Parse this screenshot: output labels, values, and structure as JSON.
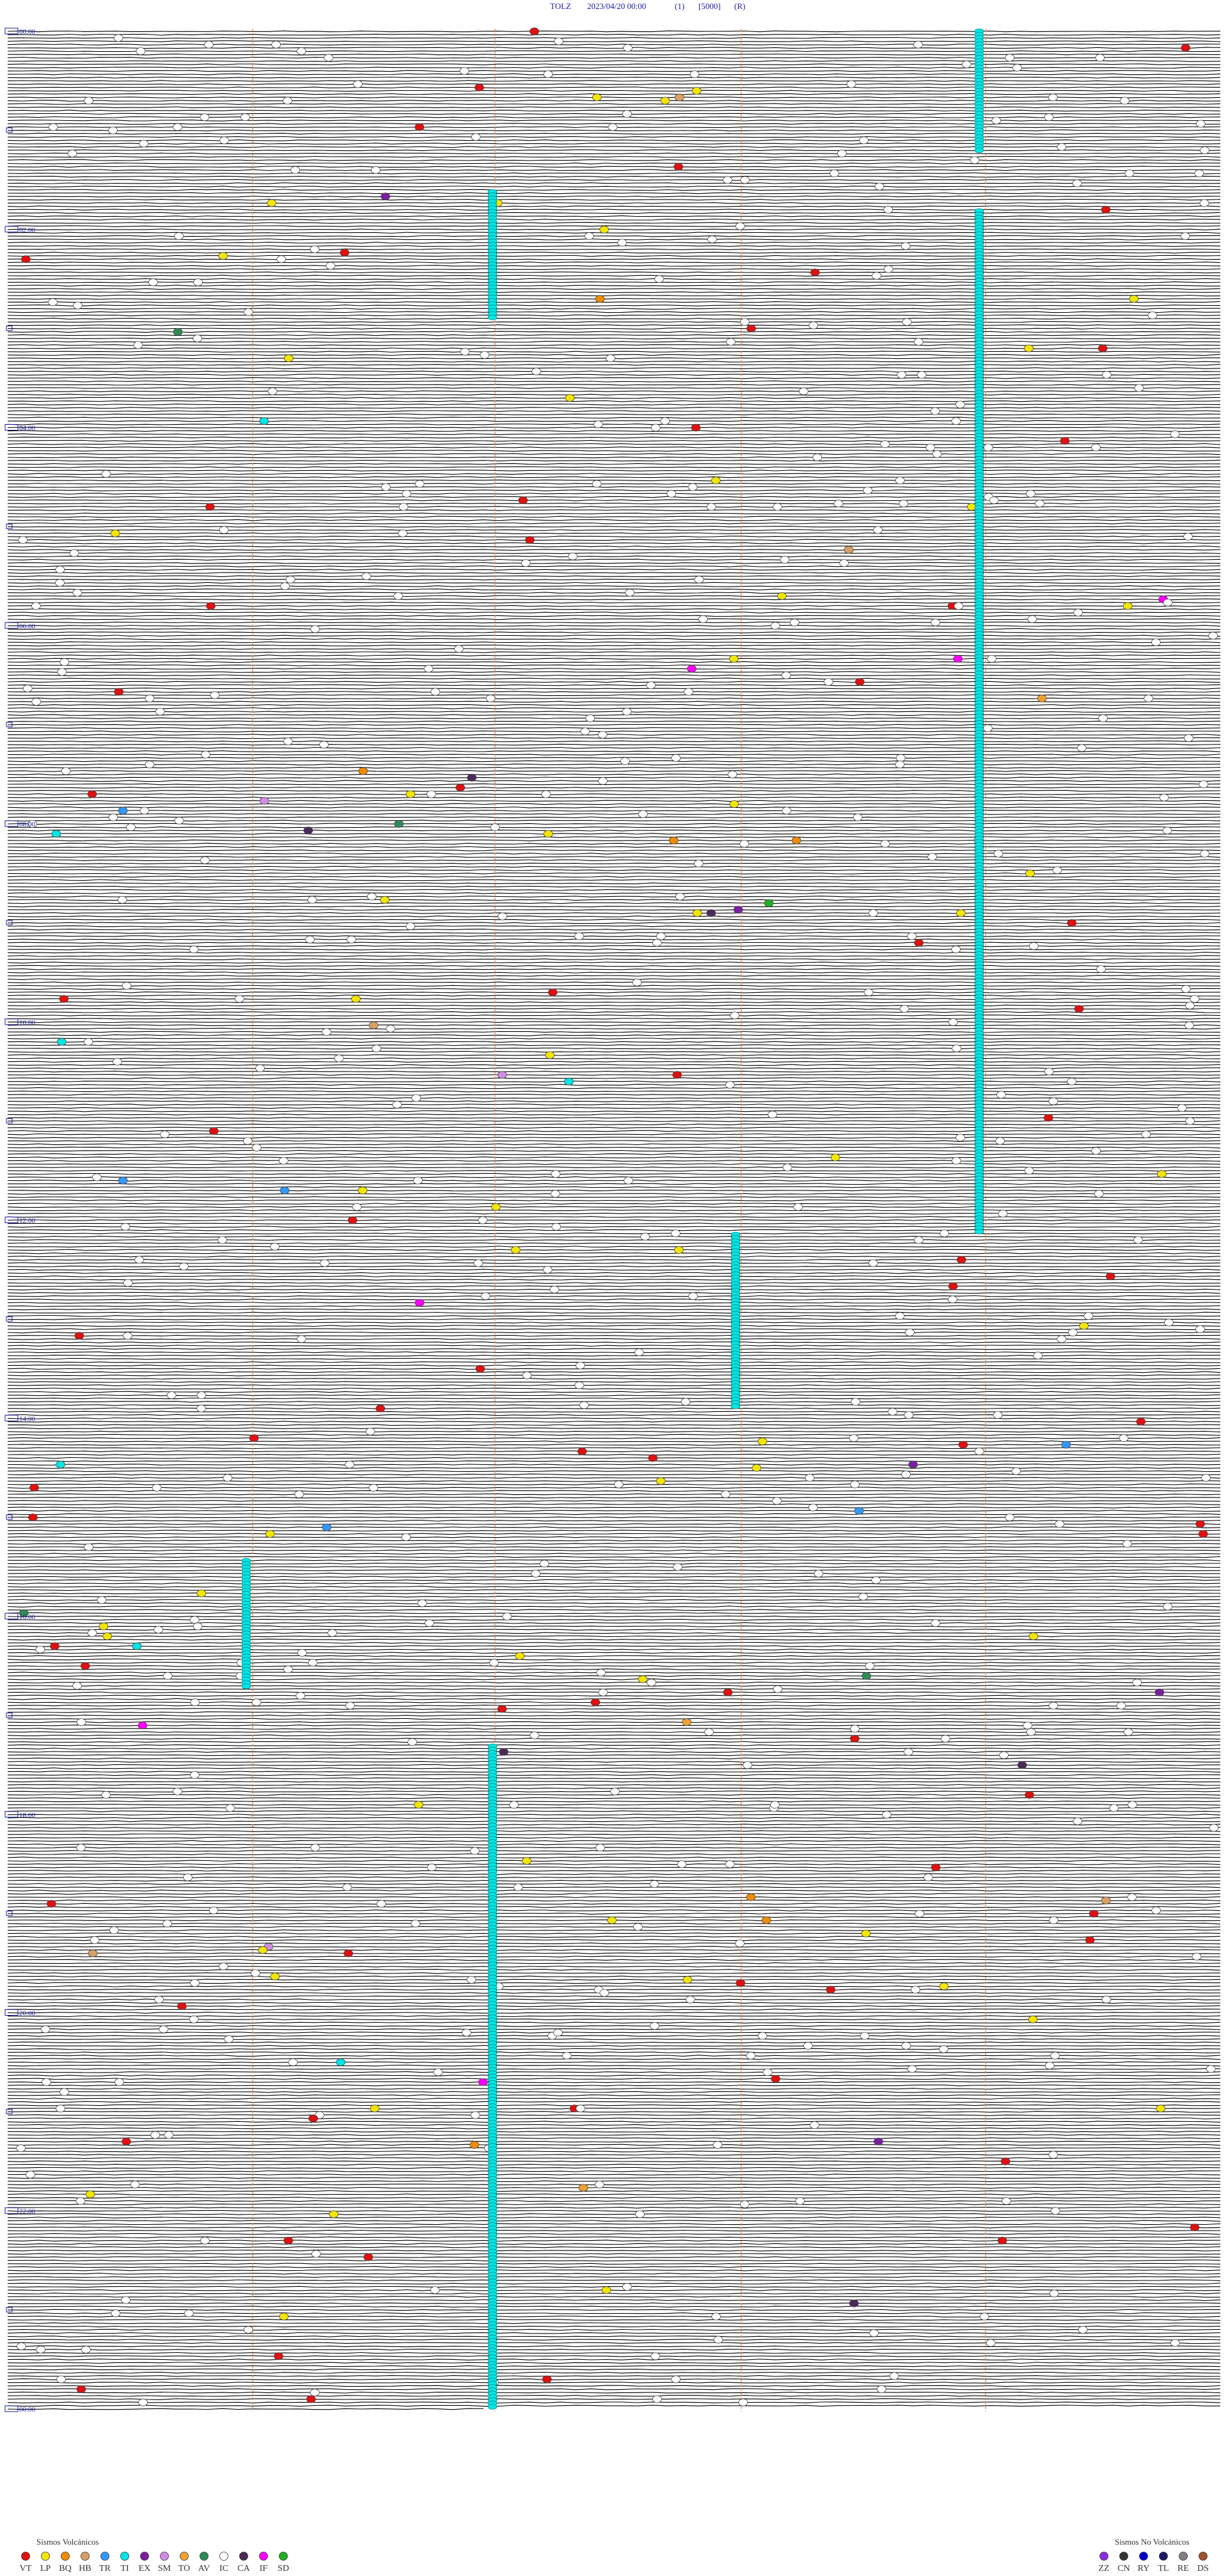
{
  "header": {
    "station": "TOLZ",
    "datetime": "2023/04/20 00:00",
    "channel": "(1)",
    "scale": "[5000]",
    "flag": "(R)"
  },
  "time_labels": [
    "00:00",
    "02:00",
    "04:00",
    "06:00",
    "08:00",
    "10:00",
    "12:00",
    "14:00",
    "16:00",
    "18:00",
    "20:00",
    "22:00",
    "00:00"
  ],
  "legend_volcanic": {
    "title": "Sismos Volcánicos",
    "items": [
      {
        "code": "VT",
        "color": "#e01010"
      },
      {
        "code": "LP",
        "color": "#f2e600"
      },
      {
        "code": "BQ",
        "color": "#f08c00"
      },
      {
        "code": "HB",
        "color": "#d9a066"
      },
      {
        "code": "TR",
        "color": "#3399ff"
      },
      {
        "code": "TI",
        "color": "#00e5e5"
      },
      {
        "code": "EX",
        "color": "#7a1fa2"
      },
      {
        "code": "SM",
        "color": "#d28ce6"
      },
      {
        "code": "TO",
        "color": "#f0a030"
      },
      {
        "code": "AV",
        "color": "#2e8b57"
      },
      {
        "code": "IC",
        "color": "#ffffff"
      },
      {
        "code": "CA",
        "color": "#4b2a5a"
      },
      {
        "code": "IF",
        "color": "#ff00ff"
      },
      {
        "code": "SD",
        "color": "#22b022"
      }
    ]
  },
  "legend_non_volcanic": {
    "title": "Sismos No Volcánicos",
    "items": [
      {
        "code": "ZZ",
        "color": "#8a2be2"
      },
      {
        "code": "CN",
        "color": "#333333"
      },
      {
        "code": "RY",
        "color": "#0000cc"
      },
      {
        "code": "TL",
        "color": "#1a1a66"
      },
      {
        "code": "RE",
        "color": "#808080"
      },
      {
        "code": "DS",
        "color": "#a0522d"
      }
    ]
  }
}
